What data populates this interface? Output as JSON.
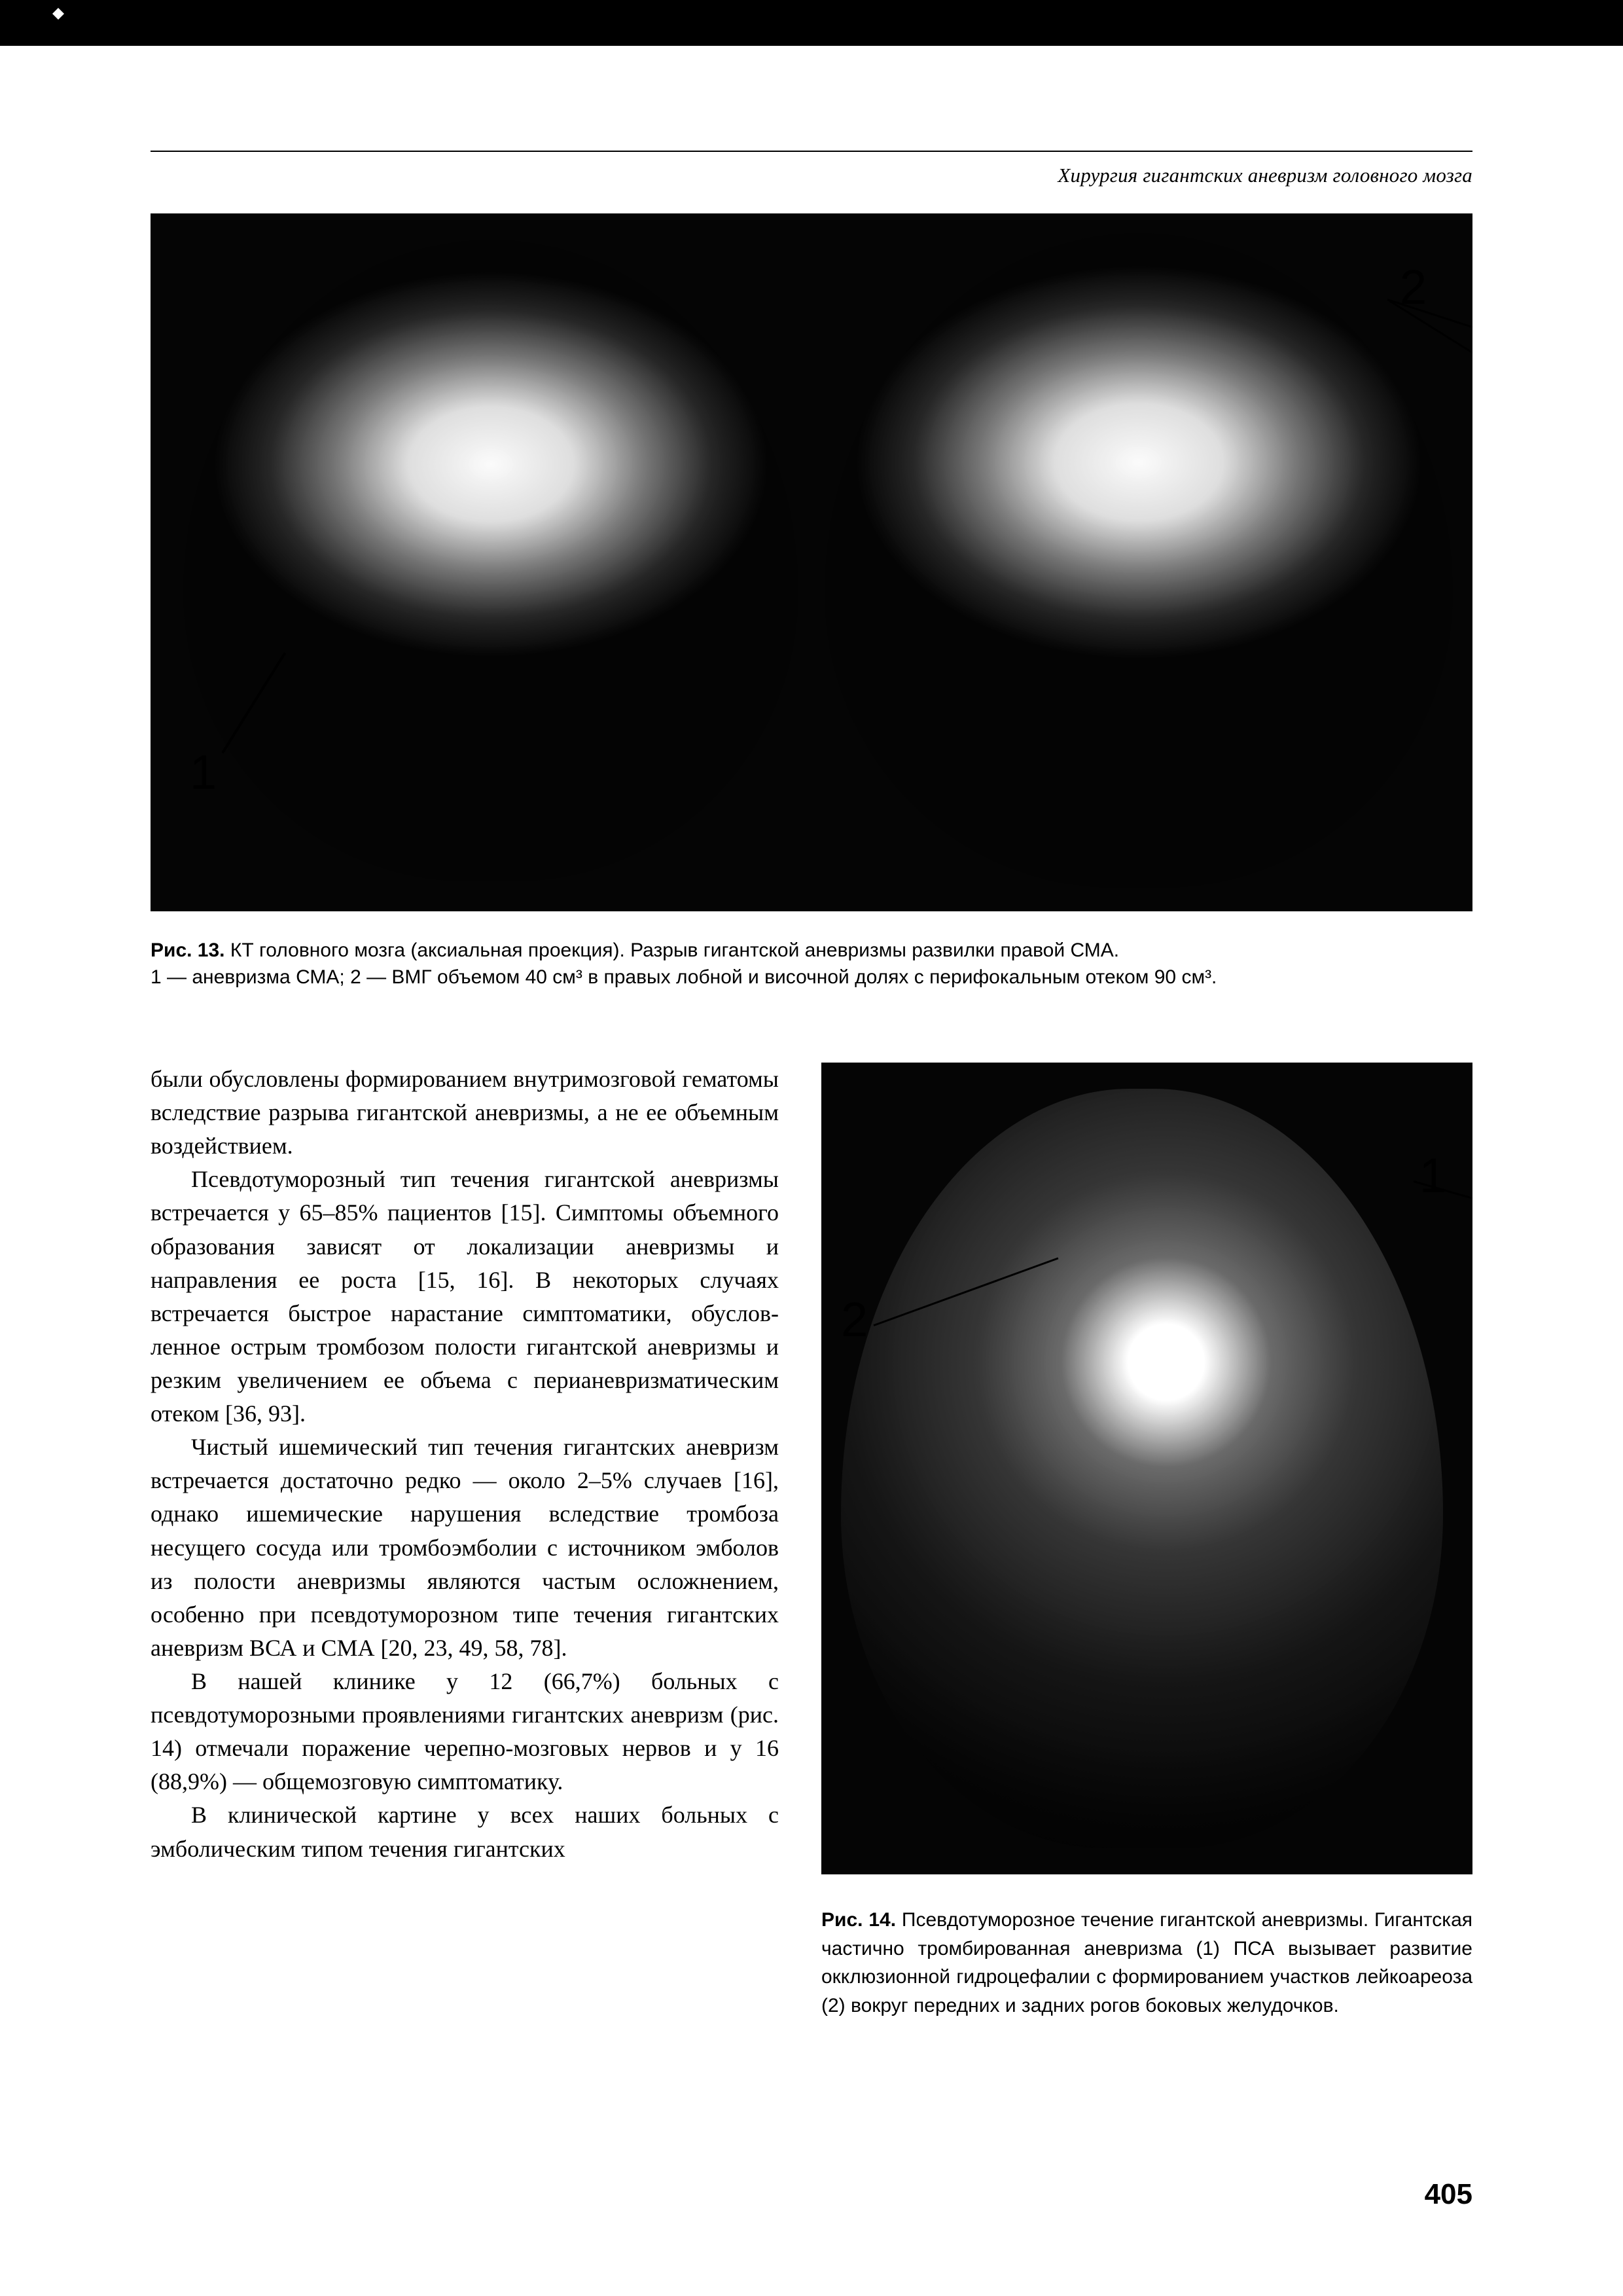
{
  "runningHead": "Хирургия гигантских аневризм головного мозга",
  "figure13": {
    "label1": "1",
    "label2": "2",
    "captionBold": "Рис. 13.",
    "captionLine1": " КТ головного мозга (аксиальная проекция). Разрыв гигантской аневризмы развилки правой СМА.",
    "captionLine2": "1 — аневризма СМА; 2 — ВМГ объемом 40 см³ в правых лобной и височной долях с перифокальным отеком 90 см³."
  },
  "bodyText": {
    "p1": "были обусловлены формированием внутримоз­говой гематомы вследствие разрыва гигантской аневризмы, а не ее объемным воздействием.",
    "p2": "Псевдотуморозный тип течения гигантской аневризмы встречается у 65–85% пациентов [15]. Симптомы объемного образования зави­сят от локализации аневризмы и направления ее роста [15, 16]. В некоторых случаях встречается быстрое нарастание симптоматики, обуслов­ленное острым тромбозом полости гигантской аневризмы и резким увеличением ее объема с перианевризматическим отеком [36, 93].",
    "p3": "Чистый ишемический тип течения гигант­ских аневризм встречается достаточно редко — около 2–5% случаев [16], однако ишемические нарушения вследствие тромбоза несущего сосу­да или тромбоэмболии с источником эмболов из полости аневризмы являются частым ослож­нением, особенно при псевдотуморозном типе течения гигантских аневризм ВСА и СМА [20, 23, 49, 58, 78].",
    "p4": "В нашей клинике у 12 (66,7%) больных с псевдотуморозными проявлениями гигантских аневризм (рис. 14) отмечали поражение череп­но-мозговых нервов и у 16 (88,9%) — общемоз­говую симптоматику.",
    "p5": "В клинической картине у всех наших боль­ных с эмболическим типом течения гигантских"
  },
  "figure14": {
    "label1": "1",
    "label2": "2",
    "captionBold": "Рис. 14.",
    "caption": " Псевдотуморозное течение гигантской аневризмы. Гигантская частично тромбированная аневризма (1) ПСА вызывает развитие окклюзион­ной гидроцефалии с формированием участков лей­коареоза (2) вокруг передних и задних рогов боко­вых желудочков."
  },
  "pageNumber": "405",
  "colors": {
    "black": "#000000",
    "white": "#ffffff",
    "ctDark": "#050505"
  },
  "typography": {
    "bodySerif": "Georgia, 'Times New Roman', serif",
    "captionSans": "Arial, Helvetica, sans-serif",
    "runningHeadSizePt": 31,
    "bodySizePt": 36,
    "captionSizePt": 30,
    "pageNumberSizePt": 44
  },
  "layout": {
    "pageWidthPx": 2480,
    "pageHeightPx": 3507,
    "leftColWidthPx": 960,
    "colGapPx": 65,
    "figure13HeightPx": 1066,
    "figure14HeightPx": 1240
  }
}
